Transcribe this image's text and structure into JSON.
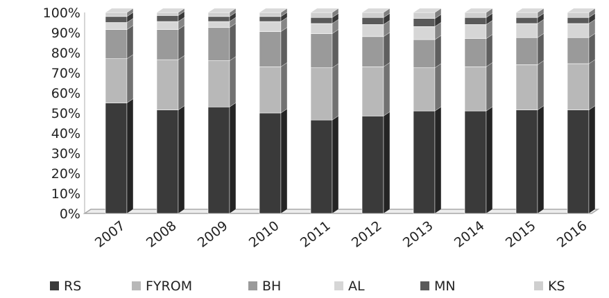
{
  "chart_data": {
    "type": "bar",
    "stacked": true,
    "normalized": true,
    "style": "3d",
    "categories": [
      "2007",
      "2008",
      "2009",
      "2010",
      "2011",
      "2012",
      "2013",
      "2014",
      "2015",
      "2016"
    ],
    "series": [
      {
        "name": "RS",
        "color": "#3a3a3a",
        "values": [
          55,
          51.5,
          53,
          50,
          46.5,
          48.5,
          51,
          51,
          51.5,
          51.5
        ]
      },
      {
        "name": "FYROM",
        "color": "#b8b8b8",
        "values": [
          22,
          25,
          23,
          23,
          26,
          24.5,
          21.5,
          22,
          22.5,
          23
        ]
      },
      {
        "name": "BH",
        "color": "#9a9a9a",
        "values": [
          14.5,
          15,
          16.5,
          17.5,
          17,
          15,
          14,
          14,
          13.5,
          13
        ]
      },
      {
        "name": "AL",
        "color": "#d6d6d6",
        "values": [
          3.5,
          4,
          3,
          5,
          5,
          6,
          6.5,
          7,
          7,
          7
        ]
      },
      {
        "name": "MN",
        "color": "#5a5a5a",
        "values": [
          3,
          3,
          2.5,
          2.5,
          3,
          3.5,
          4,
          3.5,
          3,
          3
        ]
      },
      {
        "name": "KS",
        "color": "#cfcfcf",
        "values": [
          2,
          1.5,
          2,
          2,
          2.5,
          2.5,
          3,
          2.5,
          2.5,
          2.5
        ]
      }
    ],
    "y_ticks": [
      "0%",
      "10%",
      "20%",
      "30%",
      "40%",
      "50%",
      "60%",
      "70%",
      "80%",
      "90%",
      "100%"
    ],
    "ylim": [
      0,
      100
    ],
    "title": "",
    "xlabel": "",
    "ylabel": "",
    "grid": false,
    "legend_position": "bottom"
  }
}
